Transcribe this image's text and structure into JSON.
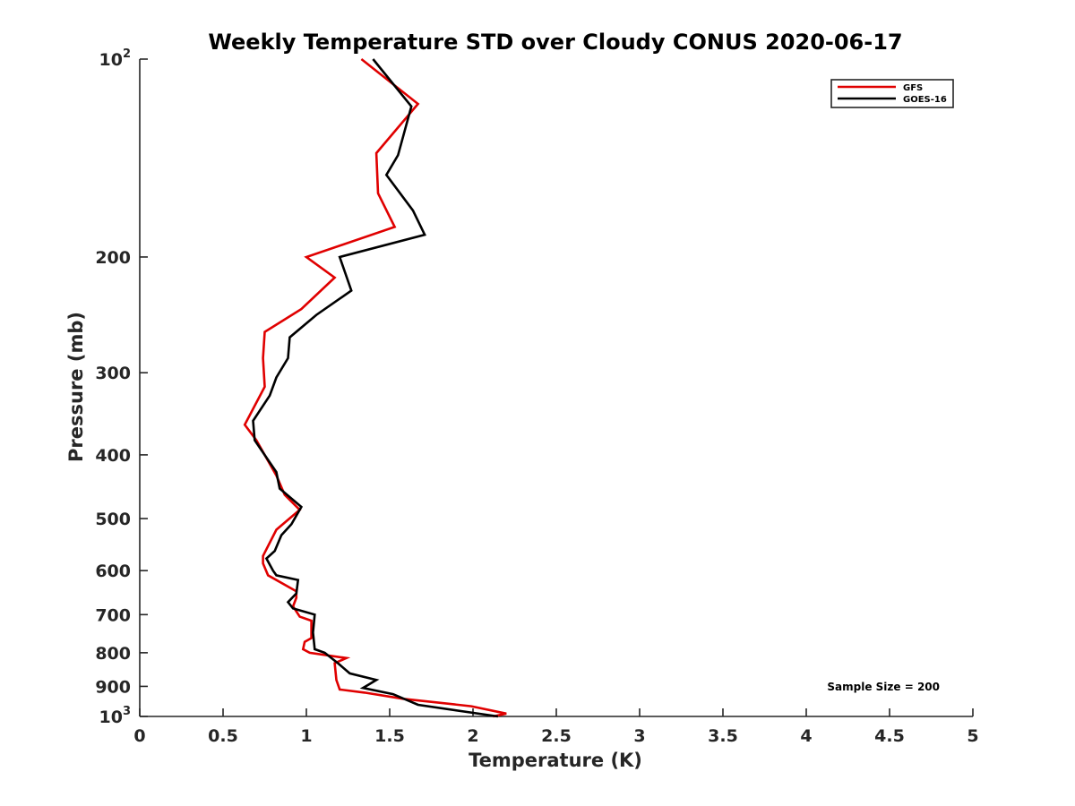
{
  "chart_data": {
    "type": "line",
    "title": "Weekly Temperature STD over Cloudy CONUS 2020-06-17",
    "xlabel": "Temperature (K)",
    "ylabel": "Pressure (mb)",
    "xlim": [
      0,
      5
    ],
    "ylim": [
      100,
      1000
    ],
    "y_scale": "log",
    "y_reversed": true,
    "grid": false,
    "legend_position": "top-right",
    "x_ticks": [
      0,
      0.5,
      1,
      1.5,
      2,
      2.5,
      3,
      3.5,
      4,
      4.5,
      5
    ],
    "x_tick_labels": [
      "0",
      "0.5",
      "1",
      "1.5",
      "2",
      "2.5",
      "3",
      "3.5",
      "4",
      "4.5",
      "5"
    ],
    "y_ticks": [
      {
        "value": 100,
        "base": "10",
        "exp": "2"
      },
      {
        "value": 200,
        "label": "200"
      },
      {
        "value": 300,
        "label": "300"
      },
      {
        "value": 400,
        "label": "400"
      },
      {
        "value": 500,
        "label": "500"
      },
      {
        "value": 600,
        "label": "600"
      },
      {
        "value": 700,
        "label": "700"
      },
      {
        "value": 800,
        "label": "800"
      },
      {
        "value": 900,
        "label": "900"
      },
      {
        "value": 1000,
        "base": "10",
        "exp": "3"
      }
    ],
    "annotation": "Sample Size = 200",
    "series": [
      {
        "name": "GFS",
        "color": "#e00000",
        "points": [
          [
            1.33,
            100
          ],
          [
            1.67,
            117
          ],
          [
            1.42,
            139
          ],
          [
            1.43,
            160
          ],
          [
            1.53,
            180
          ],
          [
            1.0,
            200
          ],
          [
            1.17,
            215
          ],
          [
            0.97,
            240
          ],
          [
            0.75,
            260
          ],
          [
            0.74,
            285
          ],
          [
            0.75,
            315
          ],
          [
            0.63,
            360
          ],
          [
            0.7,
            380
          ],
          [
            0.82,
            430
          ],
          [
            0.87,
            460
          ],
          [
            0.96,
            485
          ],
          [
            0.82,
            520
          ],
          [
            0.74,
            570
          ],
          [
            0.74,
            585
          ],
          [
            0.77,
            610
          ],
          [
            0.94,
            645
          ],
          [
            0.94,
            660
          ],
          [
            0.92,
            680
          ],
          [
            0.96,
            705
          ],
          [
            1.03,
            715
          ],
          [
            1.03,
            760
          ],
          [
            0.99,
            770
          ],
          [
            0.98,
            790
          ],
          [
            1.02,
            800
          ],
          [
            1.24,
            815
          ],
          [
            1.17,
            830
          ],
          [
            1.18,
            880
          ],
          [
            1.2,
            910
          ],
          [
            1.35,
            920
          ],
          [
            1.58,
            940
          ],
          [
            1.99,
            965
          ],
          [
            2.2,
            990
          ],
          [
            2.12,
            1000
          ]
        ]
      },
      {
        "name": "GOES-16",
        "color": "#000000",
        "points": [
          [
            1.4,
            100
          ],
          [
            1.63,
            118
          ],
          [
            1.55,
            140
          ],
          [
            1.48,
            150
          ],
          [
            1.64,
            170
          ],
          [
            1.71,
            185
          ],
          [
            1.2,
            200
          ],
          [
            1.27,
            225
          ],
          [
            1.06,
            245
          ],
          [
            0.9,
            265
          ],
          [
            0.89,
            285
          ],
          [
            0.82,
            305
          ],
          [
            0.78,
            325
          ],
          [
            0.68,
            355
          ],
          [
            0.69,
            380
          ],
          [
            0.82,
            425
          ],
          [
            0.84,
            450
          ],
          [
            0.97,
            480
          ],
          [
            0.91,
            510
          ],
          [
            0.85,
            530
          ],
          [
            0.81,
            560
          ],
          [
            0.76,
            575
          ],
          [
            0.8,
            600
          ],
          [
            0.82,
            610
          ],
          [
            0.95,
            620
          ],
          [
            0.94,
            650
          ],
          [
            0.89,
            670
          ],
          [
            0.92,
            685
          ],
          [
            1.05,
            700
          ],
          [
            1.04,
            745
          ],
          [
            1.05,
            790
          ],
          [
            1.11,
            800
          ],
          [
            1.19,
            830
          ],
          [
            1.26,
            860
          ],
          [
            1.42,
            880
          ],
          [
            1.34,
            905
          ],
          [
            1.52,
            925
          ],
          [
            1.67,
            960
          ],
          [
            2.15,
            1000
          ]
        ]
      }
    ]
  }
}
